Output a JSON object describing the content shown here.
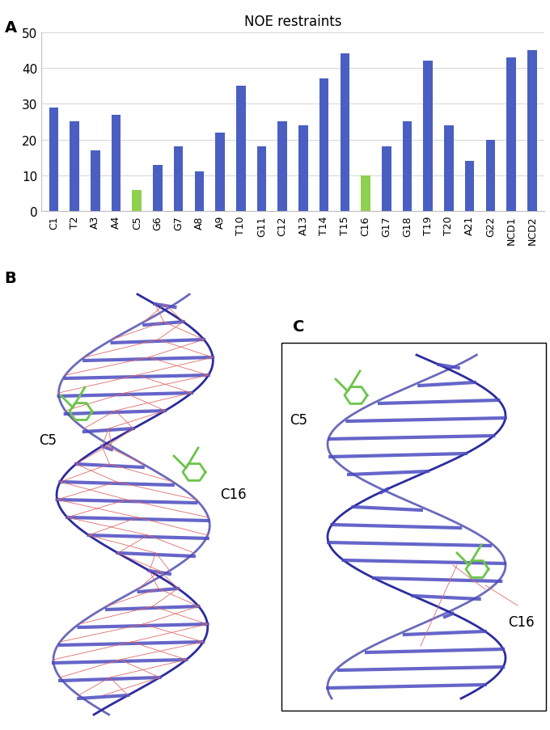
{
  "chart_data": {
    "type": "bar",
    "title": "NOE restraints",
    "panel_label": "A",
    "categories": [
      "C1",
      "T2",
      "A3",
      "A4",
      "C5",
      "G6",
      "G7",
      "A8",
      "A9",
      "T10",
      "G11",
      "C12",
      "A13",
      "T14",
      "T15",
      "C16",
      "G17",
      "G18",
      "T19",
      "T20",
      "A21",
      "G22",
      "NCD1",
      "NCD2"
    ],
    "values": [
      29,
      25,
      17,
      27,
      6,
      13,
      18,
      11,
      22,
      35,
      18,
      25,
      24,
      37,
      44,
      10,
      18,
      25,
      42,
      24,
      14,
      20,
      43,
      45
    ],
    "colors": [
      "#4a5fc1",
      "#4a5fc1",
      "#4a5fc1",
      "#4a5fc1",
      "#8fd14f",
      "#4a5fc1",
      "#4a5fc1",
      "#4a5fc1",
      "#4a5fc1",
      "#4a5fc1",
      "#4a5fc1",
      "#4a5fc1",
      "#4a5fc1",
      "#4a5fc1",
      "#4a5fc1",
      "#8fd14f",
      "#4a5fc1",
      "#4a5fc1",
      "#4a5fc1",
      "#4a5fc1",
      "#4a5fc1",
      "#4a5fc1",
      "#4a5fc1",
      "#4a5fc1"
    ],
    "ylim": [
      0,
      50
    ],
    "yticks": [
      0,
      10,
      20,
      30,
      40,
      50
    ],
    "grid": true
  },
  "panels": [
    {
      "label": "B",
      "annotations": [
        "C5",
        "C16"
      ]
    },
    {
      "label": "C",
      "annotations": [
        "C5",
        "C16"
      ]
    }
  ]
}
